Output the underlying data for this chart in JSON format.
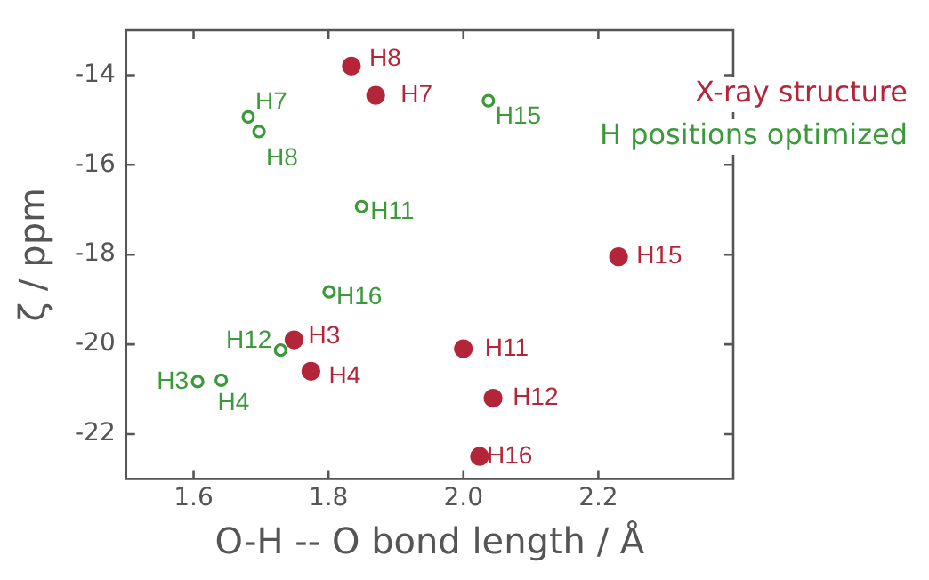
{
  "chart_data": {
    "type": "scatter",
    "xlabel": "O-H -- O bond length / Å",
    "ylabel": "ζ / ppm",
    "xlim": [
      1.5,
      2.4
    ],
    "xticks": [
      {
        "value": 1.6,
        "label": "1.6"
      },
      {
        "value": 1.8,
        "label": "1.8"
      },
      {
        "value": 2.0,
        "label": "2.0"
      },
      {
        "value": 2.2,
        "label": "2.2"
      }
    ],
    "ylim": [
      -23,
      -13
    ],
    "yticks": [
      -14,
      -16,
      -18,
      -20,
      -22
    ],
    "grid": false,
    "legend": "top right",
    "series": [
      {
        "name": "X-ray structure",
        "color": "#b5253a",
        "marker": "circle",
        "x": [
          1.834,
          1.87,
          2.23,
          2.0,
          2.044,
          2.024,
          1.749,
          1.774
        ],
        "values": [
          -13.8,
          -14.45,
          -18.05,
          -20.1,
          -21.2,
          -22.5,
          -19.9,
          -20.6
        ]
      },
      {
        "name": "H positions optimized",
        "color": "#3a9a3a",
        "marker": "circle",
        "x": [
          1.681,
          1.697,
          2.037,
          1.849,
          1.801,
          1.729,
          1.606,
          1.641
        ],
        "values": [
          -14.93,
          -15.26,
          -14.57,
          -16.93,
          -18.83,
          -20.13,
          -20.83,
          -20.8
        ]
      }
    ],
    "annotations": [
      {
        "text": "H8",
        "x": 1.834,
        "y": -13.8
      },
      {
        "text": "H7",
        "x": 1.87,
        "y": -14.45
      },
      {
        "text": "H15",
        "x": 2.23,
        "y": -18.05
      },
      {
        "text": "H11",
        "x": 2.0,
        "y": -20.1
      },
      {
        "text": "H12",
        "x": 2.044,
        "y": -21.2
      },
      {
        "text": "H16",
        "x": 2.024,
        "y": -22.5
      },
      {
        "text": "H3",
        "x": 1.749,
        "y": -19.9
      },
      {
        "text": "H4",
        "x": 1.774,
        "y": -20.6
      },
      {
        "text": "H7",
        "x": 1.681,
        "y": -14.93
      },
      {
        "text": "H8",
        "x": 1.697,
        "y": -15.26
      },
      {
        "text": "H15",
        "x": 2.037,
        "y": -14.57
      },
      {
        "text": "H11",
        "x": 1.849,
        "y": -16.93
      },
      {
        "text": "H16",
        "x": 1.801,
        "y": -18.83
      },
      {
        "text": "H12",
        "x": 1.729,
        "y": -20.13
      },
      {
        "text": "H3",
        "x": 1.606,
        "y": -20.83
      },
      {
        "text": "H4",
        "x": 1.641,
        "y": -20.8
      }
    ]
  }
}
